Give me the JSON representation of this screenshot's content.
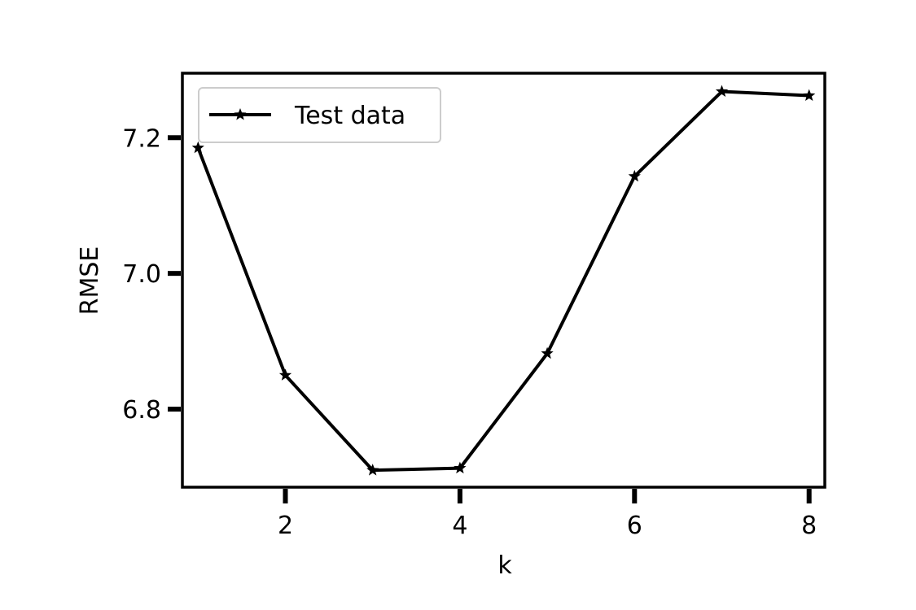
{
  "chart_data": {
    "type": "line",
    "xlabel": "k",
    "ylabel": "RMSE",
    "xlim": [
      0.82,
      8.18
    ],
    "ylim": [
      6.685,
      7.295
    ],
    "xticks": [
      2,
      4,
      6,
      8
    ],
    "yticks": [
      6.8,
      7.0,
      7.2
    ],
    "grid": false,
    "legend_position": "top-left",
    "series": [
      {
        "name": "Test data",
        "color": "#000000",
        "marker": "star",
        "x": [
          1,
          2,
          3,
          4,
          5,
          6,
          7,
          8
        ],
        "y": [
          7.185,
          6.85,
          6.71,
          6.713,
          6.882,
          7.143,
          7.268,
          7.262
        ]
      }
    ]
  }
}
